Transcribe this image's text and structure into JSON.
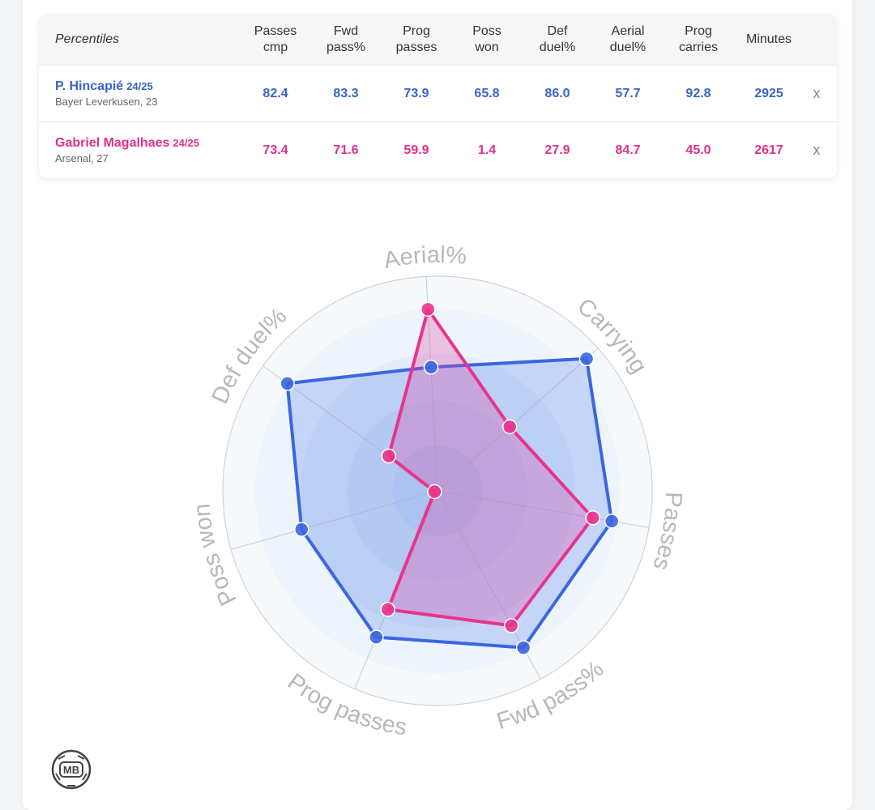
{
  "table": {
    "header_label": "Percentiles",
    "columns": [
      "Passes\ncmp",
      "Fwd\npass%",
      "Prog\npasses",
      "Poss\nwon",
      "Def\nduel%",
      "Aerial\nduel%",
      "Prog\ncarries",
      "Minutes"
    ],
    "rows": [
      {
        "name": "P. Hincapié",
        "season": "24/25",
        "sub": "Bayer Leverkusen, 23",
        "values": [
          "82.4",
          "83.3",
          "73.9",
          "65.8",
          "86.0",
          "57.7",
          "92.8",
          "2925"
        ],
        "remove_label": "x",
        "color": "#3865c6"
      },
      {
        "name": "Gabriel Magalhaes",
        "season": "24/25",
        "sub": "Arsenal, 27",
        "values": [
          "73.4",
          "71.6",
          "59.9",
          "1.4",
          "27.9",
          "84.7",
          "45.0",
          "2617"
        ],
        "remove_label": "x",
        "color": "#e0318a"
      }
    ]
  },
  "chart_data": {
    "type": "radar",
    "axes": [
      "Aerial%",
      "Carrying",
      "Passes",
      "Fwd pass%",
      "Prog passes",
      "Poss won",
      "Def duel%"
    ],
    "range": [
      0,
      100
    ],
    "series": [
      {
        "name": "P. Hincapié",
        "color": "#3b66e0",
        "values": [
          57.7,
          92.8,
          82.4,
          83.3,
          73.9,
          65.8,
          86.0
        ]
      },
      {
        "name": "Gabriel Magalhaes",
        "color": "#e8348a",
        "values": [
          84.7,
          45.0,
          73.4,
          71.6,
          59.9,
          1.4,
          27.9
        ]
      }
    ],
    "grid": "concentric circles"
  },
  "logo": {
    "text": "MB"
  }
}
